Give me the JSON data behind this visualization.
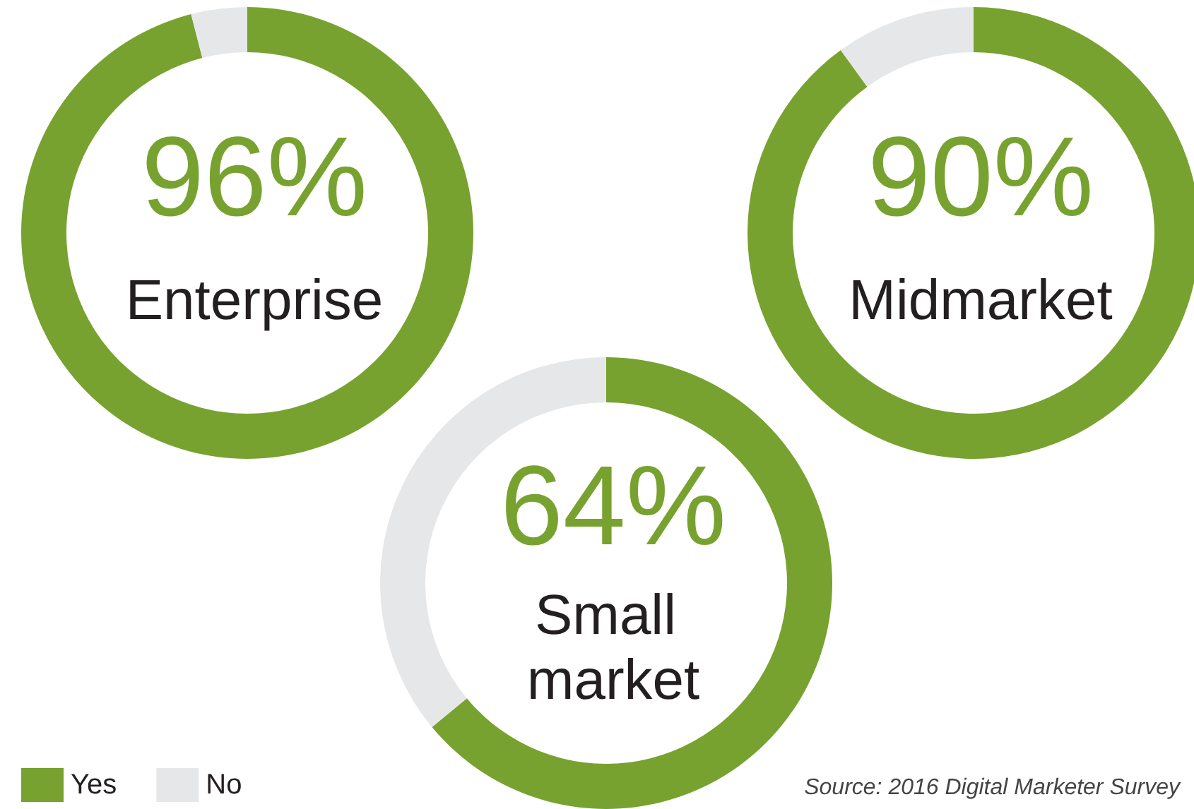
{
  "chart_data": {
    "type": "donut",
    "categories": [
      "Yes",
      "No"
    ],
    "legend": "bottom left",
    "annotations": [
      "Source: 2016 Digital Marketer Survey"
    ],
    "series": [
      {
        "name": "Enterprise",
        "values": [
          96,
          4
        ],
        "colors": [
          "#78a22f",
          "#e6e7e8"
        ],
        "value_labels": [
          "96%",
          null
        ]
      },
      {
        "name": "Midmarket",
        "values": [
          90,
          10
        ],
        "colors": [
          "#78a22f",
          "#e6e7e8"
        ],
        "value_labels": [
          "90%",
          null
        ]
      },
      {
        "name": "Small market",
        "values": [
          64,
          36
        ],
        "colors": [
          "#78a22f",
          "#e6e7e8"
        ],
        "value_labels": [
          "64%",
          null
        ]
      }
    ]
  }
}
